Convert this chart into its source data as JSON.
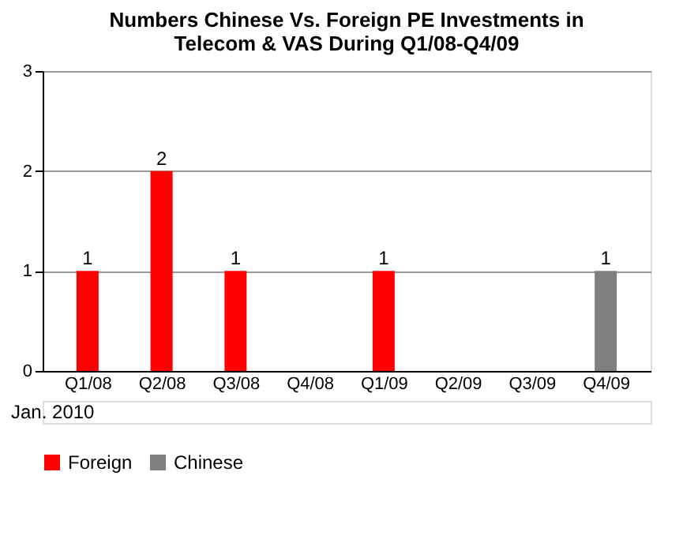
{
  "chart_data": {
    "type": "bar",
    "title": "Numbers Chinese Vs. Foreign PE Investments in Telecom & VAS During Q1/08-Q4/09",
    "categories": [
      "Q1/08",
      "Q2/08",
      "Q3/08",
      "Q4/08",
      "Q1/09",
      "Q2/09",
      "Q3/09",
      "Q4/09"
    ],
    "series": [
      {
        "name": "Foreign",
        "color": "#ff0000",
        "values": [
          1,
          2,
          1,
          null,
          1,
          null,
          null,
          null
        ]
      },
      {
        "name": "Chinese",
        "color": "#808080",
        "values": [
          null,
          null,
          null,
          null,
          null,
          null,
          null,
          1
        ]
      }
    ],
    "ylim": [
      0,
      3
    ],
    "yticks": [
      0,
      1,
      2,
      3
    ],
    "grid": "y",
    "legend": "bottom",
    "data_labels": true,
    "annotations": [
      "Jan. 2010"
    ]
  }
}
